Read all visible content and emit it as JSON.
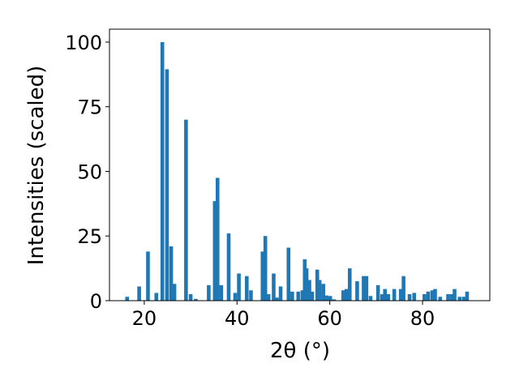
{
  "chart_data": {
    "type": "bar",
    "title": "",
    "xlabel": "2θ (°)",
    "ylabel": "Intensities (scaled)",
    "xlim": [
      12.5,
      94.5
    ],
    "ylim": [
      0,
      105
    ],
    "xticks": [
      20,
      40,
      60,
      80
    ],
    "yticks": [
      0,
      25,
      50,
      75,
      100
    ],
    "grid": false,
    "legend": "none",
    "bar_width_deg": 0.8,
    "bar_color": "#1f77b4",
    "x": [
      16.3,
      18.9,
      20.8,
      22.6,
      23.9,
      24.9,
      25.8,
      26.5,
      29.0,
      30.0,
      31.1,
      33.9,
      35.2,
      35.8,
      36.6,
      38.2,
      39.6,
      40.4,
      42.1,
      43.0,
      45.5,
      46.1,
      46.8,
      47.9,
      48.6,
      49.4,
      51.1,
      51.9,
      53.2,
      54.1,
      54.6,
      55.0,
      55.6,
      56.2,
      57.3,
      57.8,
      58.6,
      59.3,
      60.1,
      60.9,
      62.9,
      63.6,
      64.3,
      65.9,
      67.3,
      67.9,
      68.8,
      70.4,
      71.3,
      71.9,
      72.6,
      73.9,
      75.3,
      75.9,
      77.2,
      78.2,
      80.4,
      81.2,
      82.1,
      82.7,
      83.8,
      85.5,
      86.3,
      86.9,
      88.0,
      88.9,
      89.6
    ],
    "values": [
      1.5,
      5.5,
      19,
      3,
      100,
      89.5,
      21,
      6.5,
      70,
      2.5,
      0.7,
      6,
      38.5,
      47.5,
      6,
      26,
      3,
      10.5,
      9.5,
      4,
      19,
      25,
      2.5,
      10.5,
      1.2,
      5.5,
      20.5,
      3.5,
      3.5,
      4,
      16,
      12.5,
      8,
      3.5,
      12,
      8,
      6.5,
      2,
      1.8,
      0.5,
      4,
      4.5,
      12.5,
      7.5,
      9.5,
      9.5,
      1.8,
      6,
      2.5,
      4.5,
      2.5,
      4.5,
      4.5,
      9.5,
      2.5,
      3,
      2.5,
      3.5,
      4,
      4.5,
      1.5,
      2.5,
      2.5,
      4.5,
      1.5,
      1.5,
      3.5
    ]
  }
}
